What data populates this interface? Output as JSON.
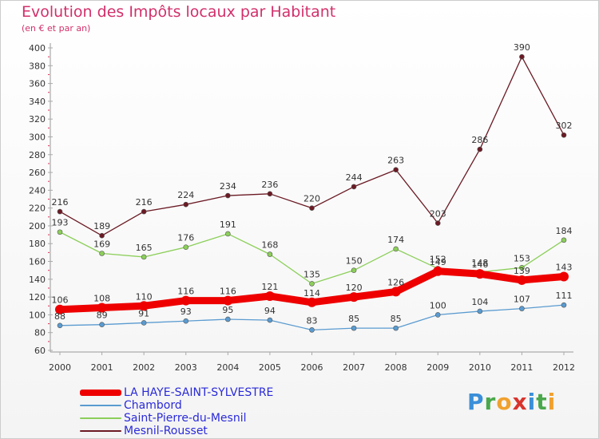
{
  "title": "Evolution des Impôts locaux par Habitant",
  "subtitle": "(en € et par an)",
  "logo": {
    "letters": [
      "P",
      "r",
      "o",
      "x",
      "i",
      "t",
      "i"
    ],
    "colors": [
      "#3b8fd8",
      "#49a84b",
      "#f0a12e",
      "#d8342c",
      "#3b8fd8",
      "#49a84b",
      "#f0a12e"
    ]
  },
  "chart_data": {
    "type": "line",
    "x": [
      "2000",
      "2001",
      "2002",
      "2003",
      "2004",
      "2005",
      "2006",
      "2007",
      "2008",
      "2009",
      "2010",
      "2011",
      "2012"
    ],
    "ylim": [
      60,
      400
    ],
    "yticks": [
      "60",
      "80",
      "100",
      "120",
      "140",
      "160",
      "180",
      "200",
      "220",
      "240",
      "260",
      "280",
      "300",
      "320",
      "340",
      "360",
      "380",
      "400"
    ],
    "grid": false,
    "legend_position": "bottom-left",
    "series": [
      {
        "name": "Mesnil-Rousset",
        "color": "#6b1a24",
        "values": [
          216,
          189,
          216,
          224,
          234,
          236,
          220,
          244,
          263,
          203,
          286,
          390,
          302
        ]
      },
      {
        "name": "Saint-Pierre-du-Mesnil",
        "color": "#8ccf5a",
        "values": [
          193,
          169,
          165,
          176,
          191,
          168,
          135,
          150,
          174,
          152,
          148,
          153,
          184
        ]
      },
      {
        "name": "Chambord",
        "color": "#5a9bd0",
        "values": [
          88,
          89,
          91,
          93,
          95,
          94,
          83,
          85,
          85,
          100,
          104,
          107,
          111
        ]
      },
      {
        "name": "LA HAYE-SAINT-SYLVESTRE",
        "color": "#ee0000",
        "values": [
          106,
          108,
          110,
          116,
          116,
          121,
          114,
          120,
          126,
          149,
          146,
          139,
          143
        ]
      }
    ],
    "legend": [
      {
        "label": "LA HAYE-SAINT-SYLVESTRE",
        "color": "#ee0000"
      },
      {
        "label": "Chambord",
        "color": "#5a9bd0"
      },
      {
        "label": "Saint-Pierre-du-Mesnil",
        "color": "#8ccf5a"
      },
      {
        "label": "Mesnil-Rousset",
        "color": "#6b1a24"
      }
    ]
  }
}
